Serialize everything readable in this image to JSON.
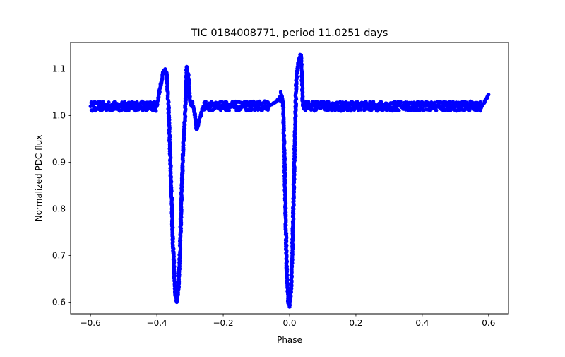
{
  "chart_data": {
    "type": "scatter",
    "title": "TIC 0184008771, period 11.0251 days",
    "xlabel": "Phase",
    "ylabel": "Normalized PDC flux",
    "xlim": [
      -0.66,
      0.66
    ],
    "ylim": [
      0.575,
      1.157
    ],
    "x_ticks": [
      -0.6,
      -0.4,
      -0.2,
      0.0,
      0.2,
      0.4,
      0.6
    ],
    "x_tick_labels": [
      "−0.6",
      "−0.4",
      "−0.2",
      "0.0",
      "0.2",
      "0.4",
      "0.6"
    ],
    "y_ticks": [
      0.6,
      0.7,
      0.8,
      0.9,
      1.0,
      1.1
    ],
    "y_tick_labels": [
      "0.6",
      "0.7",
      "0.8",
      "0.9",
      "1.0",
      "1.1"
    ],
    "grid": false,
    "marker_color": "#0000ff",
    "series": [
      {
        "x": [
          -0.6,
          -0.55,
          -0.5,
          -0.45,
          -0.4,
          -0.39,
          -0.38,
          -0.375,
          -0.37,
          -0.365,
          -0.36,
          -0.355,
          -0.35,
          -0.345,
          -0.34,
          -0.335,
          -0.33,
          -0.325,
          -0.32,
          -0.315,
          -0.31,
          -0.305,
          -0.3,
          -0.295,
          -0.29,
          -0.285,
          -0.28,
          -0.26,
          -0.22,
          -0.18,
          -0.14,
          -0.1,
          -0.06,
          -0.04,
          -0.03,
          -0.025,
          -0.02,
          -0.015,
          -0.012,
          -0.008,
          -0.004,
          0.0,
          0.004,
          0.008,
          0.012,
          0.016,
          0.02,
          0.025,
          0.03,
          0.035,
          0.04,
          0.06,
          0.1,
          0.14,
          0.18,
          0.22,
          0.26,
          0.3,
          0.34,
          0.38,
          0.42,
          0.46,
          0.5,
          0.54,
          0.58,
          0.6
        ],
        "y": [
          1.02,
          1.02,
          1.02,
          1.021,
          1.02,
          1.06,
          1.095,
          1.1,
          1.09,
          1.02,
          0.92,
          0.8,
          0.7,
          0.62,
          0.6,
          0.63,
          0.72,
          0.84,
          0.94,
          1.0,
          1.105,
          1.085,
          1.03,
          1.02,
          1.02,
          1.0,
          0.97,
          1.02,
          1.021,
          1.021,
          1.02,
          1.021,
          1.022,
          1.03,
          1.04,
          1.045,
          1.03,
          0.9,
          0.78,
          0.66,
          0.6,
          0.59,
          0.62,
          0.7,
          0.82,
          0.95,
          1.07,
          1.11,
          1.125,
          1.13,
          1.021,
          1.02,
          1.021,
          1.02,
          1.02,
          1.021,
          1.02,
          1.02,
          1.021,
          1.02,
          1.02,
          1.021,
          1.02,
          1.021,
          1.02,
          1.045
        ]
      }
    ]
  }
}
